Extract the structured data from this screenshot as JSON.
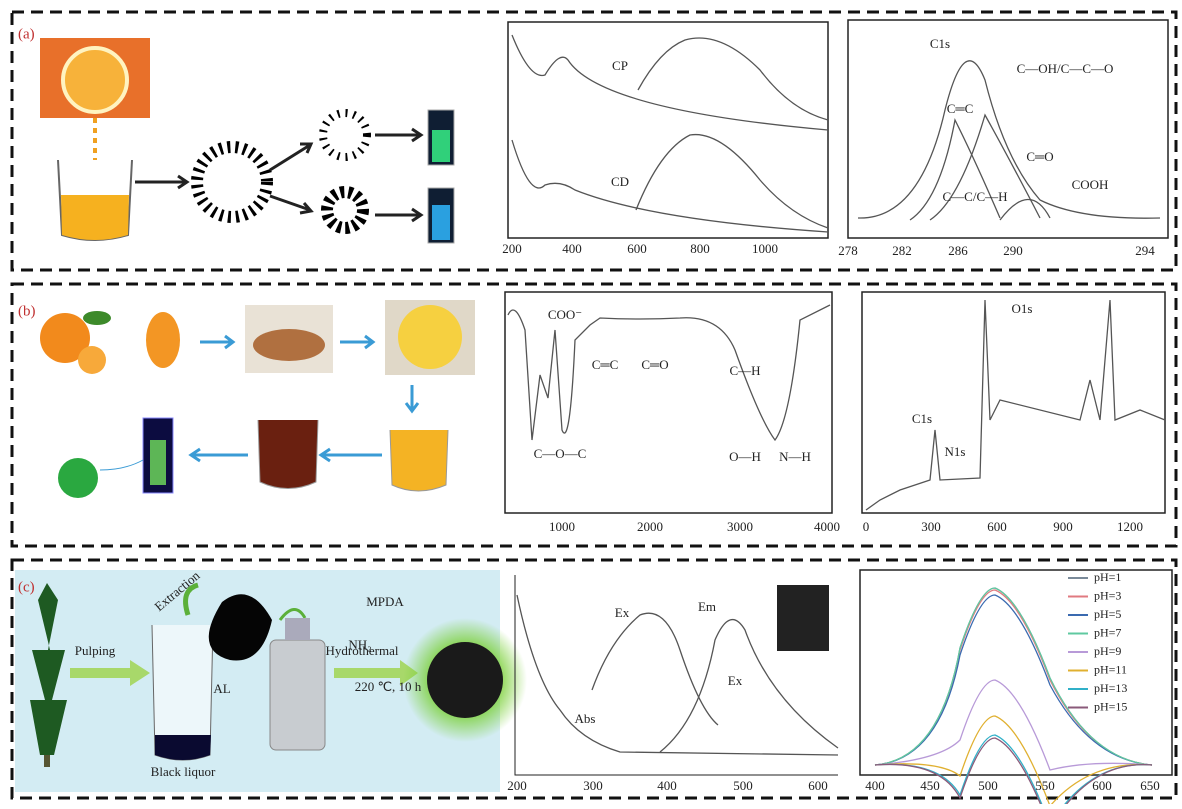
{
  "panels": [
    {
      "label": "(a)",
      "plots": [
        {
          "annotations": [
            "CP",
            "CD"
          ],
          "xticks": [
            "200",
            "400",
            "600",
            "800",
            "1000"
          ]
        },
        {
          "annotations": [
            "C1s",
            "C—OH/C—C—O",
            "C═C",
            "C═O",
            "C—C/C—H",
            "COOH"
          ],
          "xticks": [
            "278",
            "282",
            "286",
            "290",
            "294"
          ]
        }
      ]
    },
    {
      "label": "(b)",
      "plots": [
        {
          "annotations": [
            "COO⁻",
            "C═C",
            "C═O",
            "C—H",
            "C—O—C",
            "O—H",
            "N—H"
          ],
          "xticks": [
            "1000",
            "2000",
            "3000",
            "4000"
          ]
        },
        {
          "annotations": [
            "O1s",
            "C1s",
            "N1s"
          ],
          "xticks": [
            "0",
            "300",
            "600",
            "900",
            "1200"
          ]
        }
      ]
    },
    {
      "label": "(c)",
      "schematic": [
        "Extraction",
        "MPDA",
        "NH₂",
        "Pulping",
        "AL",
        "Hydrothermal",
        "220 ℃, 10 h",
        "Black liquor"
      ],
      "plots": [
        {
          "annotations": [
            "Ex",
            "Em",
            "Abs",
            "Ex"
          ],
          "xticks": [
            "200",
            "300",
            "400",
            "500",
            "600"
          ]
        },
        {
          "legend": [
            "pH=1",
            "pH=3",
            "pH=5",
            "pH=7",
            "pH=9",
            "pH=11",
            "pH=13",
            "pH=15"
          ],
          "colors": [
            "#7a8a99",
            "#e07a80",
            "#3a6ab0",
            "#5fc9a0",
            "#b89ad8",
            "#e0b030",
            "#30b0c8",
            "#8a5a7a"
          ],
          "xticks": [
            "400",
            "450",
            "500",
            "550",
            "600",
            "650"
          ]
        }
      ]
    }
  ]
}
